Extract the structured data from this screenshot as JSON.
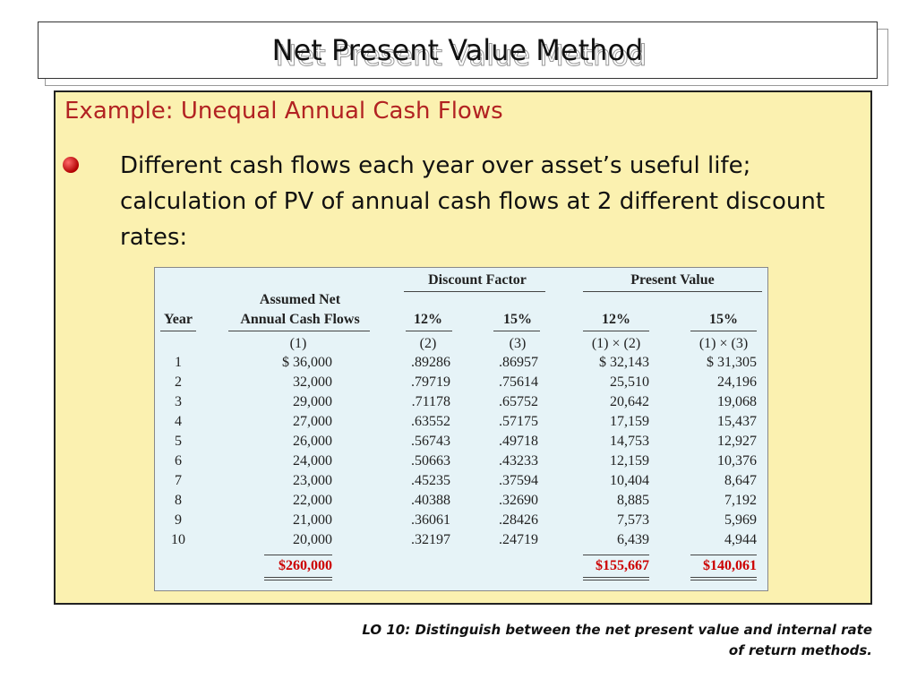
{
  "slide": {
    "title": "Net Present Value Method",
    "heading": "Example: Unequal Annual Cash Flows",
    "bullet": "Different cash flows each year over asset’s useful life; calculation of PV of annual cash flows at 2 different discount rates:",
    "footer_line1": "LO 10:  Distinguish between the net present value and internal rate",
    "footer_line2": "of return methods."
  },
  "table": {
    "group_discount": "Discount Factor",
    "group_pv": "Present Value",
    "h_year": "Year",
    "h_cash_1": "Assumed Net",
    "h_cash_2": "Annual Cash Flows",
    "h_df12": "12%",
    "h_df15": "15%",
    "h_pv12": "12%",
    "h_pv15": "15%",
    "s_cash": "(1)",
    "s_df12": "(2)",
    "s_df15": "(3)",
    "s_pv12": "(1) × (2)",
    "s_pv15": "(1) × (3)",
    "rows": [
      {
        "year": "1",
        "cash": "$  36,000",
        "df12": ".89286",
        "df15": ".86957",
        "pv12": "$  32,143",
        "pv15": "$  31,305"
      },
      {
        "year": "2",
        "cash": "32,000",
        "df12": ".79719",
        "df15": ".75614",
        "pv12": "25,510",
        "pv15": "24,196"
      },
      {
        "year": "3",
        "cash": "29,000",
        "df12": ".71178",
        "df15": ".65752",
        "pv12": "20,642",
        "pv15": "19,068"
      },
      {
        "year": "4",
        "cash": "27,000",
        "df12": ".63552",
        "df15": ".57175",
        "pv12": "17,159",
        "pv15": "15,437"
      },
      {
        "year": "5",
        "cash": "26,000",
        "df12": ".56743",
        "df15": ".49718",
        "pv12": "14,753",
        "pv15": "12,927"
      },
      {
        "year": "6",
        "cash": "24,000",
        "df12": ".50663",
        "df15": ".43233",
        "pv12": "12,159",
        "pv15": "10,376"
      },
      {
        "year": "7",
        "cash": "23,000",
        "df12": ".45235",
        "df15": ".37594",
        "pv12": "10,404",
        "pv15": "8,647"
      },
      {
        "year": "8",
        "cash": "22,000",
        "df12": ".40388",
        "df15": ".32690",
        "pv12": "8,885",
        "pv15": "7,192"
      },
      {
        "year": "9",
        "cash": "21,000",
        "df12": ".36061",
        "df15": ".28426",
        "pv12": "7,573",
        "pv15": "5,969"
      },
      {
        "year": "10",
        "cash": "20,000",
        "df12": ".32197",
        "df15": ".24719",
        "pv12": "6,439",
        "pv15": "4,944"
      }
    ],
    "total_cash": "$260,000",
    "total_pv12": "$155,667",
    "total_pv15": "$140,061"
  }
}
